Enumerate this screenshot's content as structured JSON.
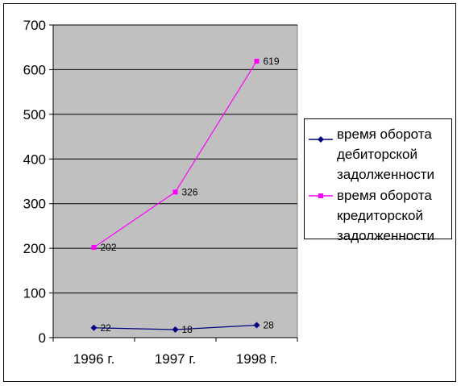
{
  "chart_data": {
    "type": "line",
    "categories": [
      "1996 г.",
      "1997 г.",
      "1998 г."
    ],
    "series": [
      {
        "name": "время оборота дебиторской задолженности",
        "values": [
          22,
          18,
          28
        ],
        "color": "#000080",
        "marker": "diamond"
      },
      {
        "name": "время оборота кредиторской задолженности",
        "values": [
          202,
          326,
          619
        ],
        "color": "#ff00ff",
        "marker": "square"
      }
    ],
    "data_labels": [
      [
        "22",
        "18",
        "28"
      ],
      [
        "202",
        "326",
        "619"
      ]
    ],
    "ylim": [
      0,
      700
    ],
    "yticks": [
      "0",
      "100",
      "200",
      "300",
      "400",
      "500",
      "600",
      "700"
    ],
    "plot_background": "#c0c0c0",
    "grid": true,
    "legend": "right"
  }
}
